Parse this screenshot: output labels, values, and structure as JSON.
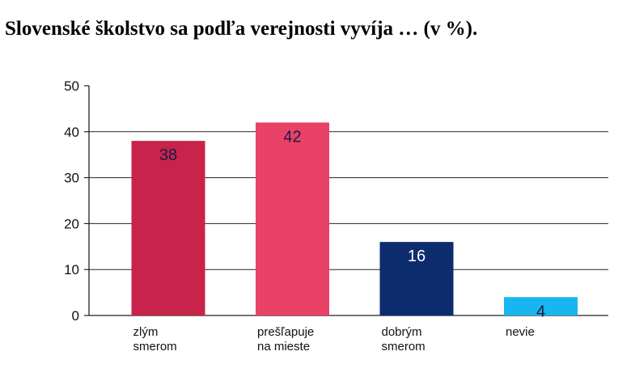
{
  "chart_data": {
    "type": "bar",
    "title": "Slovenské školstvo sa podľa verejnosti vyvíja … (v %).",
    "categories": [
      [
        "zlým",
        "smerom"
      ],
      [
        "prešľapuje",
        "na mieste"
      ],
      [
        "dobrým",
        "smerom"
      ],
      [
        "nevie"
      ]
    ],
    "values": [
      38,
      42,
      16,
      4
    ],
    "value_labels": [
      "38",
      "42",
      "16",
      "4"
    ],
    "bar_colors": [
      "#c8234a",
      "#ea4167",
      "#0d2c6e",
      "#18b6ee"
    ],
    "label_colors": [
      "#1a1a4a",
      "#1a1a4a",
      "#ffffff",
      "#1a1a4a"
    ],
    "ylim": [
      0,
      50
    ],
    "yticks": [
      0,
      10,
      20,
      30,
      40,
      50
    ],
    "ytick_labels": [
      "0",
      "10",
      "20",
      "30",
      "40",
      "50"
    ],
    "grid": true,
    "xlabel": "",
    "ylabel": ""
  }
}
